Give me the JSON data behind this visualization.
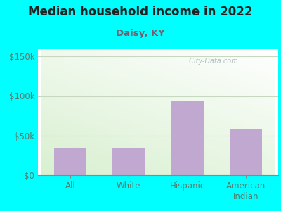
{
  "title": "Median household income in 2022",
  "subtitle": "Daisy, KY",
  "categories": [
    "All",
    "White",
    "Hispanic",
    "American\nIndian"
  ],
  "values": [
    35000,
    35000,
    93000,
    58000
  ],
  "bar_color": "#C0A8D0",
  "background_color": "#00FFFF",
  "title_color": "#222222",
  "subtitle_color": "#7a5a6a",
  "axis_label_color": "#5a7a6a",
  "yticks": [
    0,
    50000,
    100000,
    150000
  ],
  "ytick_labels": [
    "$0",
    "$50k",
    "$100k",
    "$150k"
  ],
  "ylim": [
    0,
    160000
  ],
  "watermark_text": " City-Data.com",
  "watermark_color": "#aababa",
  "title_fontsize": 12,
  "subtitle_fontsize": 9.5,
  "tick_fontsize": 8.5,
  "grid_color": "#c8d8c0",
  "bottom_line_color": "#888888"
}
